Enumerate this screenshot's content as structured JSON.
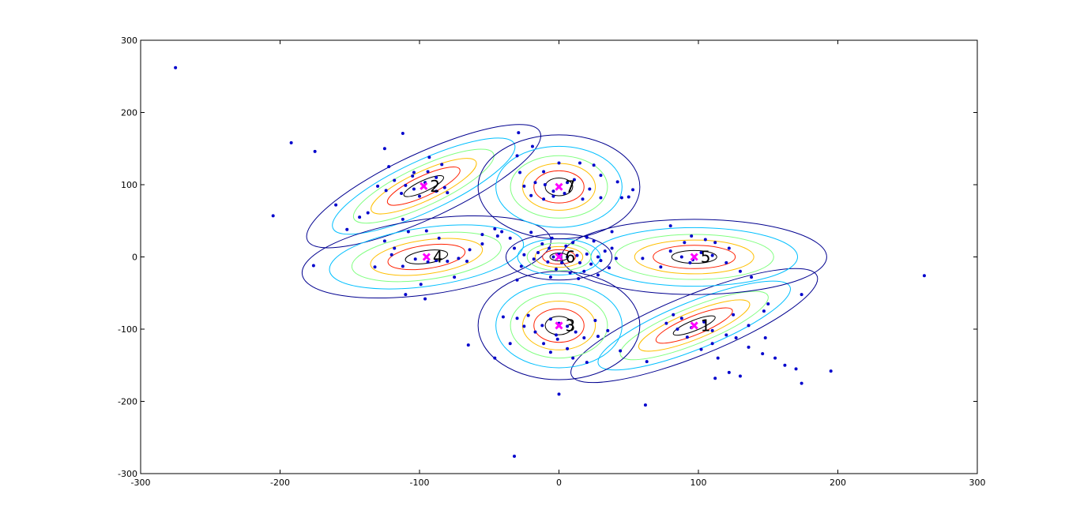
{
  "chart_data": {
    "type": "scatter",
    "title": "",
    "xlabel": "",
    "ylabel": "",
    "xlim": [
      -300,
      300
    ],
    "ylim": [
      -300,
      300
    ],
    "x_ticks": [
      -300,
      -200,
      -100,
      0,
      100,
      200,
      300
    ],
    "y_ticks": [
      -300,
      -200,
      -100,
      0,
      100,
      200,
      300
    ],
    "x_tick_labels": [
      "-300",
      "-200",
      "-100",
      "0",
      "100",
      "200",
      "300"
    ],
    "y_tick_labels": [
      "-300",
      "-200",
      "-100",
      "0",
      "100",
      "200",
      "300"
    ],
    "grid": false,
    "contour_levels_colors": [
      "#00008f",
      "#00bfff",
      "#80ff80",
      "#ffbf00",
      "#ff2000",
      "#000000"
    ],
    "point_color": "#0000cc",
    "center_marker_color": "#ff00ff",
    "centers": [
      {
        "label": "1",
        "x": 97,
        "y": -95,
        "rx": 95,
        "ry": 42,
        "angle": -22
      },
      {
        "label": "2",
        "x": -97,
        "y": 98,
        "rx": 92,
        "ry": 45,
        "angle": -25
      },
      {
        "label": "3",
        "x": 0,
        "y": -95,
        "rx": 58,
        "ry": 75,
        "angle": 0
      },
      {
        "label": "4",
        "x": -95,
        "y": 0,
        "rx": 90,
        "ry": 52,
        "angle": -8
      },
      {
        "label": "5",
        "x": 97,
        "y": 0,
        "rx": 95,
        "ry": 52,
        "angle": 0
      },
      {
        "label": "6",
        "x": 0,
        "y": 0,
        "rx": 38,
        "ry": 32,
        "angle": 0
      },
      {
        "label": "7",
        "x": 0,
        "y": 97,
        "rx": 58,
        "ry": 72,
        "angle": 0
      }
    ],
    "points": [
      [
        -275,
        262
      ],
      [
        -205,
        57
      ],
      [
        -192,
        158
      ],
      [
        -175,
        146
      ],
      [
        -160,
        72
      ],
      [
        -152,
        38
      ],
      [
        -143,
        55
      ],
      [
        -137,
        61
      ],
      [
        -125,
        150
      ],
      [
        -122,
        125
      ],
      [
        -112,
        171
      ],
      [
        -104,
        117
      ],
      [
        -93,
        138
      ],
      [
        -84,
        128
      ],
      [
        -112,
        52
      ],
      [
        -108,
        35
      ],
      [
        -95,
        36
      ],
      [
        -118,
        12
      ],
      [
        -125,
        22
      ],
      [
        -86,
        26
      ],
      [
        -80,
        -6
      ],
      [
        -88,
        -5
      ],
      [
        -94,
        -7
      ],
      [
        -103,
        -3
      ],
      [
        -112,
        -13
      ],
      [
        -120,
        3
      ],
      [
        -132,
        -14
      ],
      [
        -72,
        -2
      ],
      [
        -75,
        -28
      ],
      [
        -99,
        -38
      ],
      [
        -110,
        -52
      ],
      [
        -96,
        -58
      ],
      [
        -66,
        -6
      ],
      [
        -64,
        10
      ],
      [
        -55,
        18
      ],
      [
        -176,
        -12
      ],
      [
        -104,
        94
      ],
      [
        -110,
        99
      ],
      [
        -96,
        103
      ],
      [
        -88,
        91
      ],
      [
        -80,
        89
      ],
      [
        -88,
        110
      ],
      [
        -100,
        84
      ],
      [
        -113,
        88
      ],
      [
        -118,
        106
      ],
      [
        -82,
        96
      ],
      [
        -105,
        112
      ],
      [
        -94,
        118
      ],
      [
        -130,
        98
      ],
      [
        -124,
        92
      ],
      [
        -29,
        172
      ],
      [
        -30,
        140
      ],
      [
        -19,
        153
      ],
      [
        -28,
        117
      ],
      [
        -11,
        118
      ],
      [
        0,
        130
      ],
      [
        15,
        130
      ],
      [
        25,
        127
      ],
      [
        30,
        113
      ],
      [
        42,
        104
      ],
      [
        53,
        93
      ],
      [
        -10,
        100
      ],
      [
        -4,
        91
      ],
      [
        6,
        103
      ],
      [
        4,
        88
      ],
      [
        -4,
        84
      ],
      [
        11,
        107
      ],
      [
        22,
        94
      ],
      [
        -17,
        103
      ],
      [
        -25,
        98
      ],
      [
        -20,
        85
      ],
      [
        17,
        80
      ],
      [
        -11,
        80
      ],
      [
        30,
        82
      ],
      [
        45,
        82
      ],
      [
        50,
        83
      ],
      [
        -46,
        39
      ],
      [
        -41,
        35
      ],
      [
        -44,
        29
      ],
      [
        -55,
        31
      ],
      [
        -35,
        26
      ],
      [
        -20,
        34
      ],
      [
        -5,
        26
      ],
      [
        10,
        20
      ],
      [
        20,
        27
      ],
      [
        25,
        22
      ],
      [
        5,
        15
      ],
      [
        -7,
        12
      ],
      [
        -15,
        6
      ],
      [
        0,
        4
      ],
      [
        -4,
        0
      ],
      [
        6,
        0
      ],
      [
        13,
        2
      ],
      [
        20,
        4
      ],
      [
        28,
        0
      ],
      [
        33,
        8
      ],
      [
        38,
        12
      ],
      [
        30,
        -5
      ],
      [
        23,
        -10
      ],
      [
        15,
        -8
      ],
      [
        2,
        -8
      ],
      [
        -8,
        -7
      ],
      [
        -18,
        -3
      ],
      [
        -25,
        3
      ],
      [
        -32,
        12
      ],
      [
        -12,
        18
      ],
      [
        -2,
        -17
      ],
      [
        8,
        -22
      ],
      [
        18,
        -20
      ],
      [
        28,
        -25
      ],
      [
        36,
        -15
      ],
      [
        41,
        -2
      ],
      [
        -27,
        -13
      ],
      [
        -6,
        -28
      ],
      [
        14,
        -30
      ],
      [
        38,
        35
      ],
      [
        -30,
        -32
      ],
      [
        -40,
        -83
      ],
      [
        -30,
        -85
      ],
      [
        -22,
        -81
      ],
      [
        -12,
        -95
      ],
      [
        -6,
        -86
      ],
      [
        0,
        -92
      ],
      [
        6,
        -96
      ],
      [
        12,
        -104
      ],
      [
        18,
        -112
      ],
      [
        26,
        -88
      ],
      [
        35,
        -102
      ],
      [
        44,
        -130
      ],
      [
        -2,
        -108
      ],
      [
        -11,
        -120
      ],
      [
        -6,
        -132
      ],
      [
        10,
        -140
      ],
      [
        6,
        -127
      ],
      [
        -1,
        -114
      ],
      [
        -17,
        -104
      ],
      [
        -25,
        -96
      ],
      [
        -35,
        -120
      ],
      [
        -46,
        -140
      ],
      [
        -65,
        -122
      ],
      [
        0,
        -190
      ],
      [
        20,
        -146
      ],
      [
        28,
        -110
      ],
      [
        62,
        -205
      ],
      [
        -32,
        -276
      ],
      [
        63,
        -145
      ],
      [
        80,
        43
      ],
      [
        95,
        29
      ],
      [
        105,
        24
      ],
      [
        90,
        20
      ],
      [
        80,
        8
      ],
      [
        88,
        0
      ],
      [
        96,
        -4
      ],
      [
        110,
        2
      ],
      [
        120,
        -8
      ],
      [
        130,
        -20
      ],
      [
        138,
        -28
      ],
      [
        112,
        20
      ],
      [
        122,
        12
      ],
      [
        73,
        -14
      ],
      [
        60,
        -2
      ],
      [
        150,
        -65
      ],
      [
        147,
        -75
      ],
      [
        174,
        -52
      ],
      [
        262,
        -26
      ],
      [
        94,
        -8
      ],
      [
        102,
        6
      ],
      [
        82,
        -80
      ],
      [
        88,
        -85
      ],
      [
        95,
        -98
      ],
      [
        104,
        -90
      ],
      [
        110,
        -102
      ],
      [
        120,
        -108
      ],
      [
        127,
        -112
      ],
      [
        136,
        -125
      ],
      [
        146,
        -134
      ],
      [
        155,
        -140
      ],
      [
        162,
        -150
      ],
      [
        170,
        -155
      ],
      [
        148,
        -112
      ],
      [
        136,
        -95
      ],
      [
        125,
        -80
      ],
      [
        110,
        -120
      ],
      [
        92,
        -111
      ],
      [
        85,
        -100
      ],
      [
        77,
        -92
      ],
      [
        102,
        -128
      ],
      [
        114,
        -140
      ],
      [
        122,
        -160
      ],
      [
        130,
        -165
      ],
      [
        112,
        -168
      ],
      [
        174,
        -175
      ],
      [
        195,
        -158
      ]
    ]
  }
}
